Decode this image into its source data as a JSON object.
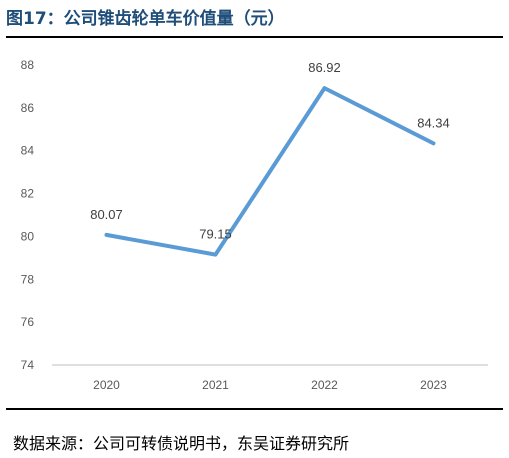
{
  "figure": {
    "title": "图17：公司锥齿轮单车价值量（元）",
    "source": "数据来源：公司可转债说明书，东吴证券研究所"
  },
  "colors": {
    "line": "#5b9bd5",
    "title": "#1f4e79",
    "axis": "#bfbfbf"
  },
  "chart_data": {
    "type": "line",
    "title": "",
    "xlabel": "",
    "ylabel": "",
    "categories": [
      "2020",
      "2021",
      "2022",
      "2023"
    ],
    "series": [
      {
        "values": [
          80.07,
          79.15,
          86.92,
          84.34
        ]
      }
    ],
    "data_labels": [
      "80.07",
      "79.15",
      "86.92",
      "84.34"
    ],
    "ylim": [
      74,
      88
    ],
    "yticks": [
      74,
      76,
      78,
      80,
      82,
      84,
      86,
      88
    ],
    "grid": false,
    "legend": "none"
  }
}
